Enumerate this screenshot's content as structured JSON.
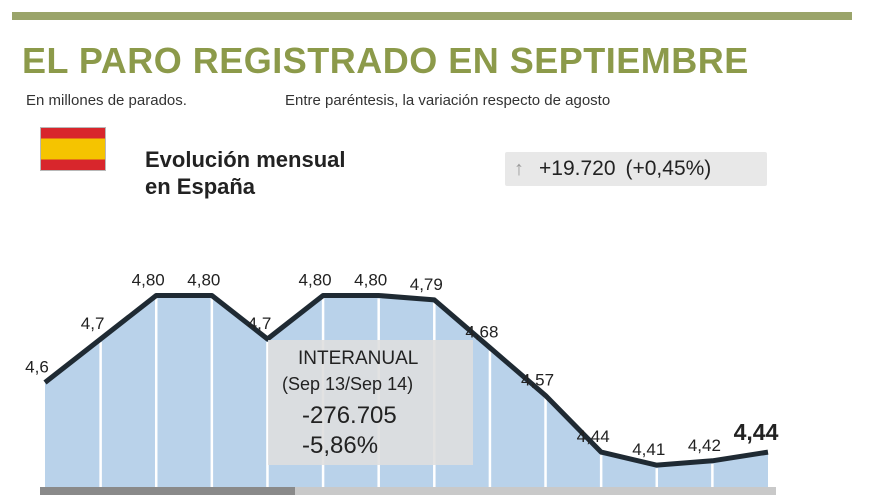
{
  "header": {
    "title": "EL PARO REGISTRADO EN SEPTIEMBRE",
    "subtitle_left": "En millones de parados.",
    "subtitle_right": "Entre paréntesis, la variación respecto de agosto"
  },
  "section": {
    "heading_line1": "Evolución mensual",
    "heading_line2": "en España",
    "change_value": "+19.720",
    "change_pct": "(+0,45%)",
    "change_icon": "up-arrow-icon"
  },
  "annotation": {
    "title": "INTERANUAL",
    "period": "(Sep 13/Sep 14)",
    "abs_change": "-276.705",
    "pct_change": "-5,86%"
  },
  "colors": {
    "title": "#8c9a4a",
    "area_fill": "#b9d2ea",
    "line": "#1f2a33",
    "flag_red": "#d8262c",
    "flag_yellow": "#f5c400"
  },
  "chart_data": {
    "type": "area",
    "title": "EL PARO REGISTRADO EN SEPTIEMBRE",
    "ylabel": "En millones de parados.",
    "xlabel": "",
    "ylim": [
      4.3,
      4.9
    ],
    "grid": false,
    "points": [
      {
        "value": 4.6,
        "label": "4,6"
      },
      {
        "value": 4.7,
        "label": "4,7"
      },
      {
        "value": 4.8,
        "label": "4,80"
      },
      {
        "value": 4.8,
        "label": "4,80"
      },
      {
        "value": 4.7,
        "label": "4,7"
      },
      {
        "value": 4.8,
        "label": "4,80"
      },
      {
        "value": 4.8,
        "label": "4,80"
      },
      {
        "value": 4.79,
        "label": "4,79"
      },
      {
        "value": 4.68,
        "label": "4,68"
      },
      {
        "value": 4.57,
        "label": "4,57"
      },
      {
        "value": 4.44,
        "label": "4,44"
      },
      {
        "value": 4.41,
        "label": "4,41"
      },
      {
        "value": 4.42,
        "label": "4,42"
      },
      {
        "value": 4.44,
        "label": "4,44"
      }
    ]
  }
}
